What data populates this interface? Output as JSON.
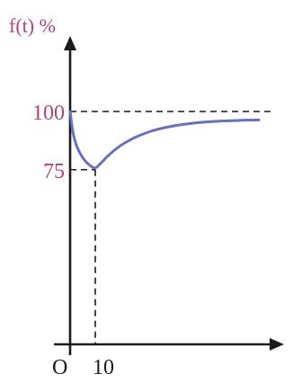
{
  "chart_data": {
    "type": "line",
    "ylabel": "f(t) %",
    "origin_label": "O",
    "x_tick_labels": [
      "10"
    ],
    "y_tick_labels": [
      "100",
      "75"
    ],
    "x_ticks": [
      10
    ],
    "y_ticks": [
      100,
      75
    ],
    "xlim": [
      0,
      80
    ],
    "ylim": [
      0,
      120
    ],
    "guides": {
      "horizontal": [
        100,
        75
      ],
      "vertical": [
        10
      ]
    },
    "series": [
      {
        "x": [
          0,
          1,
          2,
          3,
          5,
          7,
          9,
          10,
          12,
          15,
          20,
          25,
          30,
          35,
          40,
          45,
          50,
          55,
          60,
          65,
          70,
          75
        ],
        "y": [
          100,
          91.5,
          87,
          84,
          80,
          77.5,
          76,
          75.5,
          77.5,
          81,
          85.5,
          88.5,
          90.8,
          92.5,
          93.6,
          94.5,
          95.1,
          95.6,
          95.9,
          96.1,
          96.3,
          96.4
        ]
      }
    ],
    "grid": false,
    "colors": {
      "curve": "#6a6fc0",
      "labels": "#b0447a",
      "axes": "#1a1a1a"
    }
  }
}
